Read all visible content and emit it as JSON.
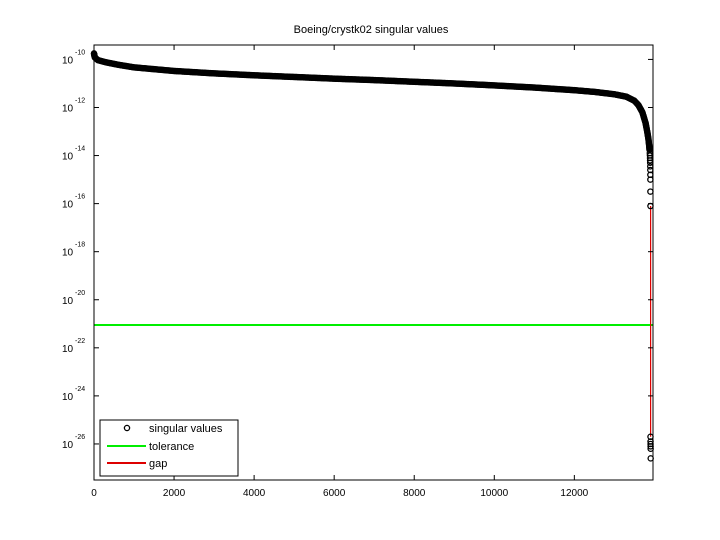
{
  "chart_data": {
    "type": "scatter",
    "title": "Boeing/crystk02 singular values",
    "xlabel": "",
    "ylabel": "",
    "xlim": [
      0,
      13965
    ],
    "ylim_log10": [
      -27.5,
      -9.4
    ],
    "y_scale": "log",
    "x_ticks": [
      0,
      2000,
      4000,
      6000,
      8000,
      10000,
      12000
    ],
    "x_tick_labels": [
      "0",
      "2000",
      "4000",
      "6000",
      "8000",
      "10000",
      "12000"
    ],
    "y_ticks_log10": [
      -10,
      -12,
      -14,
      -16,
      -18,
      -20,
      -22,
      -24,
      -26
    ],
    "y_tick_bases": [
      "10",
      "10",
      "10",
      "10",
      "10",
      "10",
      "10",
      "10",
      "10"
    ],
    "y_tick_exponents": [
      "-10",
      "-12",
      "-14",
      "-16",
      "-18",
      "-20",
      "-22",
      "-24",
      "-26"
    ],
    "grid": false,
    "legend_position": "bottom-left",
    "series": [
      {
        "name": "singular values",
        "kind": "markers",
        "color": "#000000",
        "curve_points": [
          [
            0,
            -9.75
          ],
          [
            5,
            -9.8
          ],
          [
            20,
            -9.92
          ],
          [
            100,
            -10.03
          ],
          [
            300,
            -10.12
          ],
          [
            600,
            -10.22
          ],
          [
            1000,
            -10.33
          ],
          [
            2000,
            -10.48
          ],
          [
            3000,
            -10.58
          ],
          [
            4000,
            -10.66
          ],
          [
            5000,
            -10.73
          ],
          [
            6000,
            -10.8
          ],
          [
            7000,
            -10.86
          ],
          [
            8000,
            -10.93
          ],
          [
            9000,
            -11.0
          ],
          [
            10000,
            -11.08
          ],
          [
            11000,
            -11.17
          ],
          [
            12000,
            -11.28
          ],
          [
            12500,
            -11.35
          ],
          [
            13000,
            -11.45
          ],
          [
            13300,
            -11.55
          ],
          [
            13500,
            -11.72
          ],
          [
            13600,
            -11.9
          ],
          [
            13700,
            -12.2
          ],
          [
            13780,
            -12.65
          ],
          [
            13820,
            -13.0
          ],
          [
            13850,
            -13.3
          ],
          [
            13870,
            -13.6
          ],
          [
            13880,
            -13.8
          ]
        ],
        "tail_points": [
          [
            13885,
            -13.9
          ],
          [
            13888,
            -14.0
          ],
          [
            13890,
            -14.1
          ],
          [
            13892,
            -14.2
          ],
          [
            13894,
            -14.3
          ],
          [
            13896,
            -14.45
          ],
          [
            13897,
            -14.6
          ],
          [
            13898,
            -14.8
          ],
          [
            13899,
            -15.0
          ],
          [
            13900,
            -15.5
          ],
          [
            13901,
            -16.1
          ],
          [
            13902,
            -25.7
          ],
          [
            13903,
            -25.9
          ],
          [
            13904,
            -26.0
          ],
          [
            13905,
            -26.1
          ],
          [
            13906,
            -26.2
          ],
          [
            13907,
            -26.6
          ]
        ]
      },
      {
        "name": "tolerance",
        "kind": "hline",
        "color": "#00ee00",
        "y_log10": -21.05
      },
      {
        "name": "gap",
        "kind": "vline",
        "color": "#dd0000",
        "x": 13905,
        "y_log10_range": [
          -16.1,
          -25.7
        ]
      }
    ]
  }
}
